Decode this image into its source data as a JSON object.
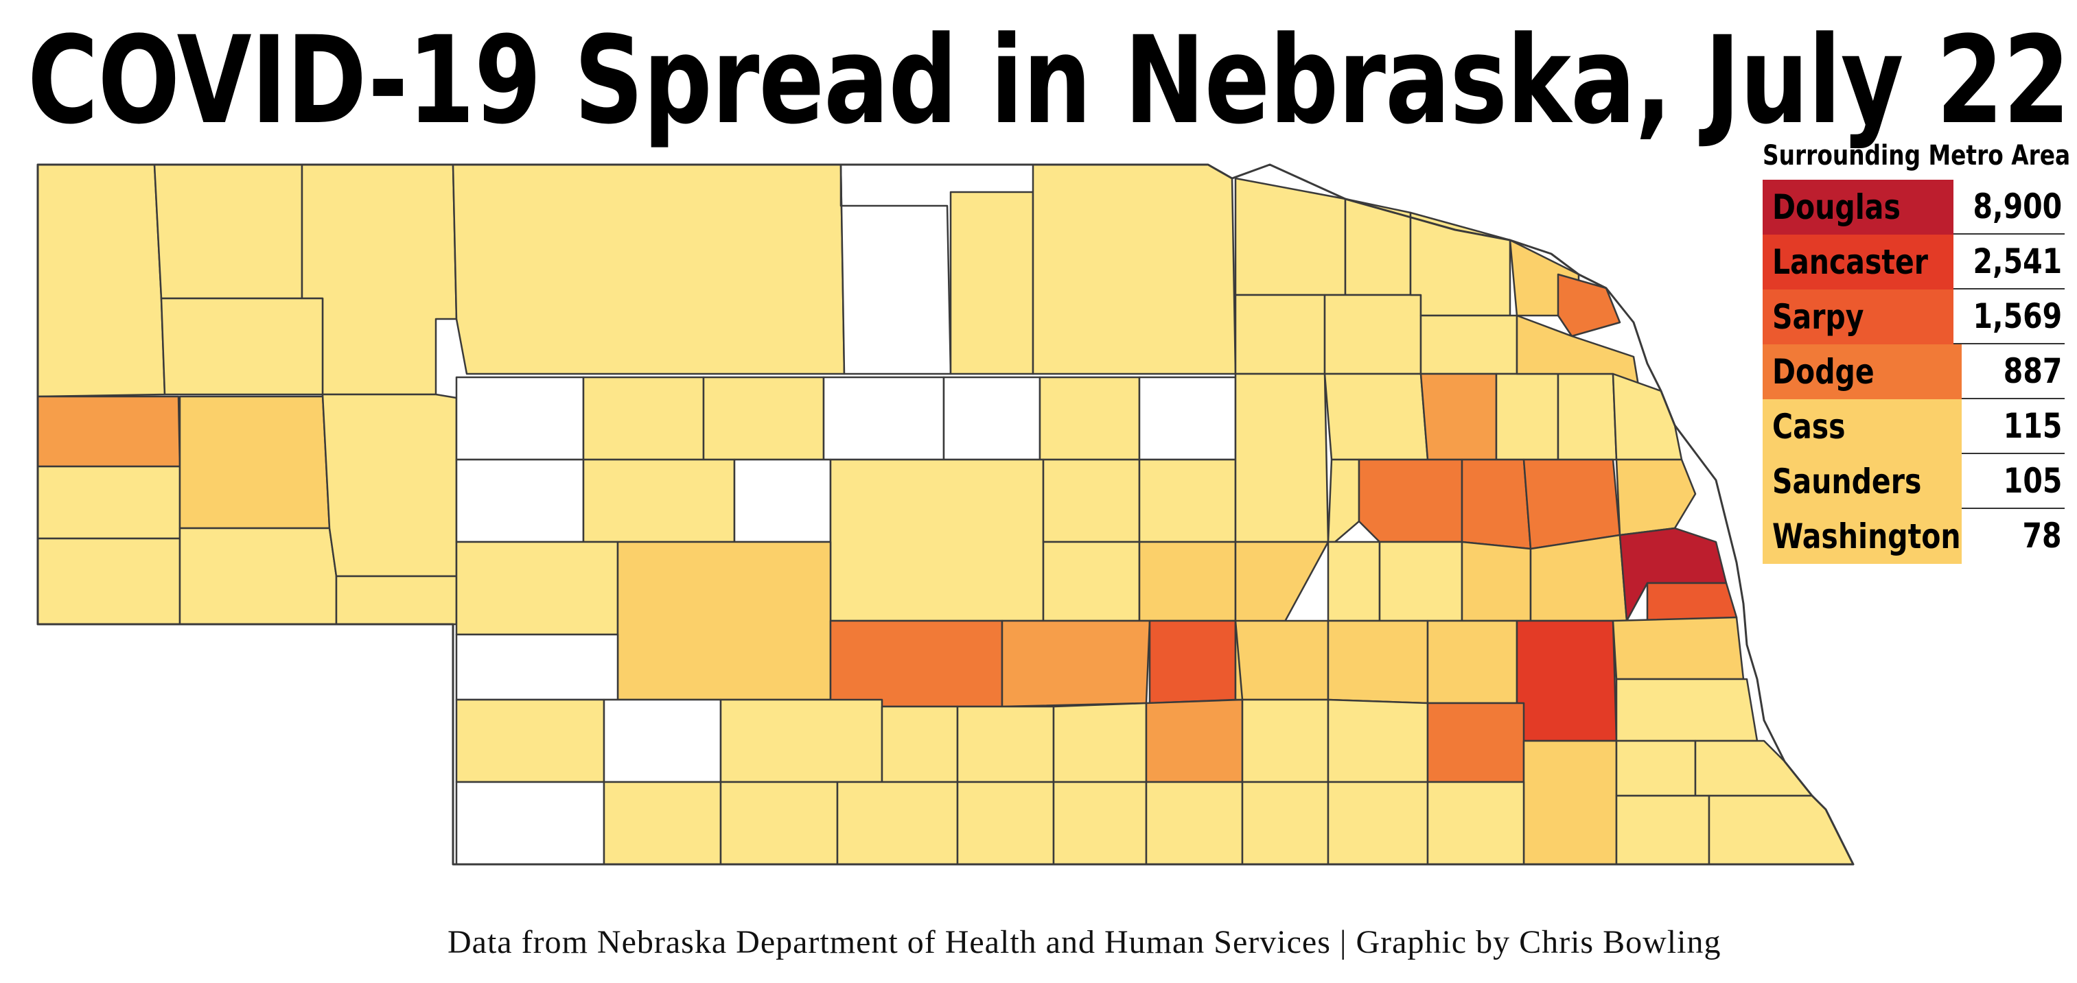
{
  "title": "COVID-19 Spread in Nebraska, July 22",
  "colors": {
    "none": "#ffffff",
    "low": "#fde68a",
    "light": "#fbd06a",
    "moderate": "#f69e4a",
    "elevated": "#f17a37",
    "high": "#ec5a2e",
    "very_high": "#e33b26",
    "max": "#bd1e2e",
    "border": "#3a3a3a"
  },
  "metro_table": {
    "title": "Surrounding Metro Area",
    "rows": [
      {
        "county": "Douglas",
        "cases": "8,900",
        "color": "#bd1e2e"
      },
      {
        "county": "Lancaster",
        "cases": "2,541",
        "color": "#e33b26"
      },
      {
        "county": "Sarpy",
        "cases": "1,569",
        "color": "#ec5a2e"
      },
      {
        "county": "Dodge",
        "cases": "887",
        "color": "#f17a37"
      },
      {
        "county": "Cass",
        "cases": "115",
        "color": "#fbd06a"
      },
      {
        "county": "Saunders",
        "cases": "105",
        "color": "#fbd06a"
      },
      {
        "county": "Washington",
        "cases": "78",
        "color": "#fbd06a"
      }
    ]
  },
  "source_credit": "Data from Nebraska Department of Health and Human Services | Graphic by Chris Bowling"
}
